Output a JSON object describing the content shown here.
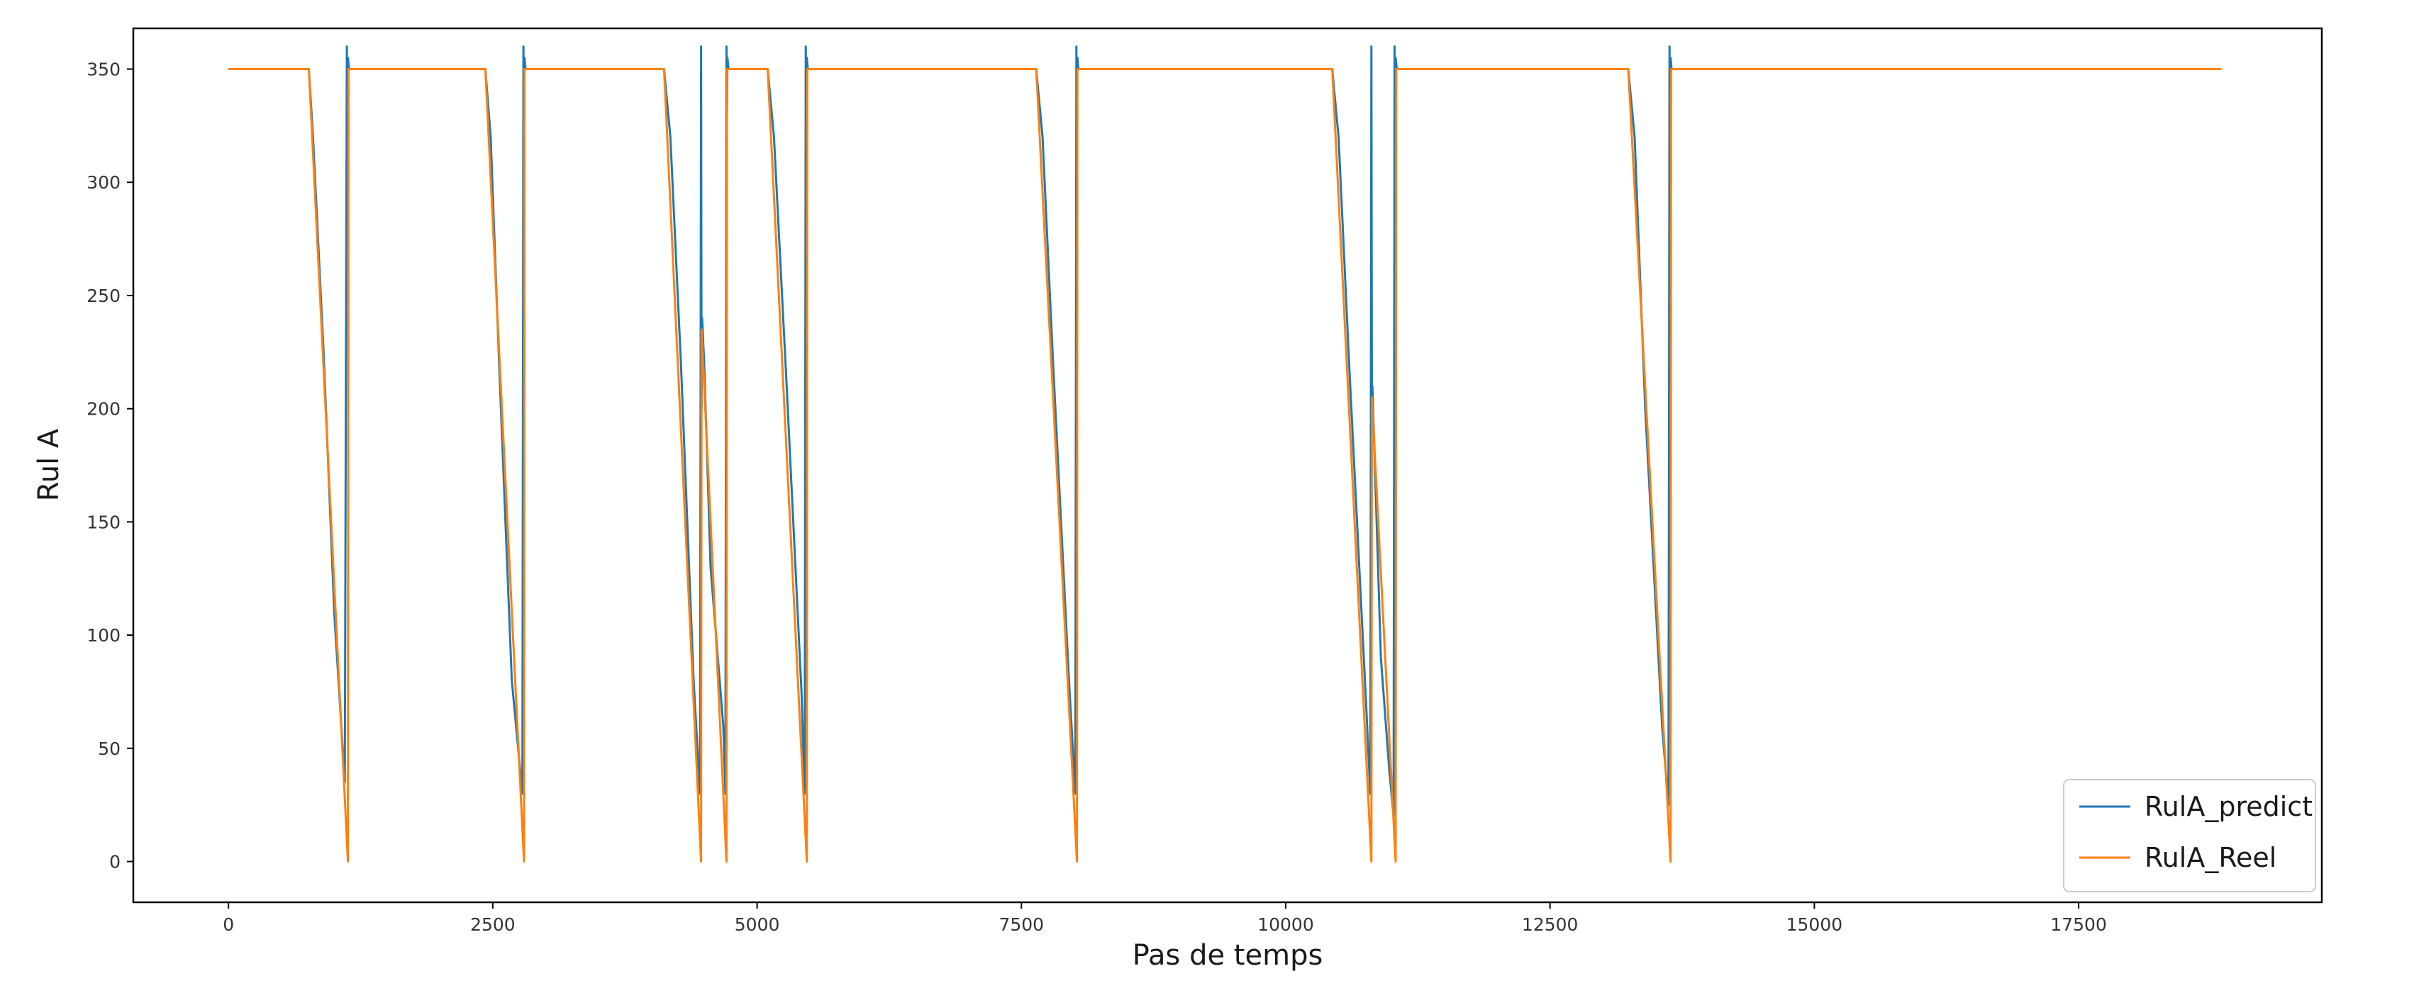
{
  "chart_data": {
    "type": "line",
    "title": "",
    "xlabel": "Pas de temps",
    "ylabel": "Rul A",
    "xlim": [
      -900,
      19800
    ],
    "ylim": [
      -18,
      368
    ],
    "xticks": [
      0,
      2500,
      5000,
      7500,
      10000,
      12500,
      15000,
      17500
    ],
    "yticks": [
      0,
      50,
      100,
      150,
      200,
      250,
      300,
      350
    ],
    "grid": false,
    "legend_position": "lower right",
    "series": [
      {
        "name": "RulA_predict",
        "color": "#1f77b4",
        "x": [
          0,
          760,
          800,
          900,
          1000,
          1100,
          1120,
          1125,
          1130,
          1140,
          1150,
          1160,
          2430,
          2480,
          2560,
          2680,
          2780,
          2790,
          2795,
          2800,
          2810,
          2820,
          2830,
          4120,
          4180,
          4280,
          4400,
          4460,
          4470,
          4475,
          4480,
          4500,
          4560,
          4680,
          4700,
          4710,
          4715,
          4720,
          4730,
          4740,
          5100,
          5160,
          5280,
          5420,
          5450,
          5460,
          5465,
          5470,
          5480,
          5490,
          5500,
          7640,
          7700,
          7800,
          7950,
          8010,
          8020,
          8025,
          8030,
          8040,
          8050,
          8060,
          10440,
          10500,
          10600,
          10760,
          10800,
          10810,
          10815,
          10820,
          10840,
          10900,
          10980,
          11020,
          11030,
          11035,
          11040,
          11050,
          11060,
          13240,
          13300,
          13400,
          13560,
          13620,
          13630,
          13635,
          13640,
          13650,
          13660,
          18850
        ],
        "y": [
          350,
          350,
          320,
          225,
          110,
          35,
          360,
          320,
          355,
          350,
          350,
          350,
          350,
          320,
          220,
          80,
          30,
          360,
          330,
          355,
          350,
          350,
          350,
          350,
          320,
          220,
          80,
          30,
          360,
          200,
          240,
          220,
          130,
          60,
          30,
          360,
          330,
          355,
          350,
          350,
          350,
          320,
          210,
          75,
          30,
          360,
          320,
          355,
          350,
          350,
          350,
          350,
          320,
          220,
          80,
          30,
          360,
          330,
          355,
          350,
          350,
          350,
          350,
          320,
          220,
          70,
          30,
          360,
          200,
          210,
          180,
          90,
          40,
          20,
          360,
          330,
          355,
          350,
          350,
          350,
          320,
          200,
          60,
          25,
          360,
          330,
          355,
          350,
          350,
          350
        ]
      },
      {
        "name": "RulA_Reel",
        "color": "#ff7f0e",
        "x": [
          0,
          760,
          1130,
          1135,
          2430,
          2795,
          2800,
          4120,
          4470,
          4475,
          4710,
          4715,
          5100,
          5470,
          5475,
          7640,
          8025,
          8030,
          10440,
          10810,
          10815,
          11040,
          11045,
          13240,
          13640,
          13645,
          18850
        ],
        "y": [
          350,
          350,
          0,
          350,
          350,
          0,
          350,
          350,
          0,
          235,
          0,
          350,
          350,
          0,
          350,
          350,
          0,
          350,
          350,
          0,
          205,
          0,
          350,
          350,
          0,
          350,
          350
        ]
      }
    ]
  }
}
